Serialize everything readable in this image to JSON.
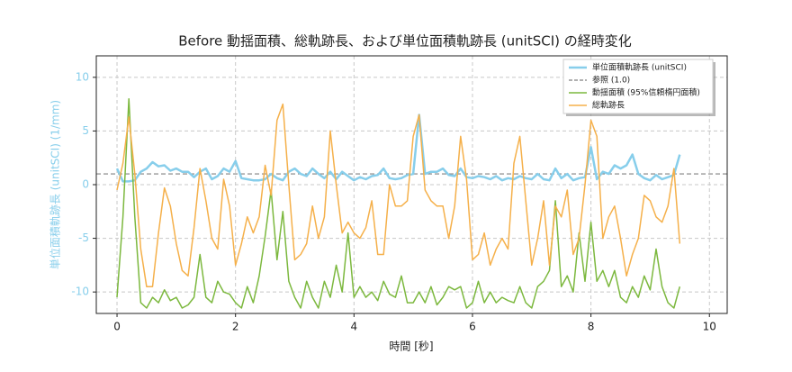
{
  "chart_data": {
    "type": "line",
    "title": "Before 動揺面積、総軌跡長、および単位面積軌跡長 (unitSCI) の経時変化",
    "xlabel": "時間 [秒]",
    "ylabel": "単位面積軌跡長 (unitSCI) (1/mm)",
    "ylabel_color": "#87ceeb",
    "xlim": [
      -0.35,
      10.3
    ],
    "ylim": [
      -12,
      12
    ],
    "xticks": [
      0,
      2,
      4,
      6,
      8,
      10
    ],
    "yticks": [
      -10,
      -5,
      0,
      5,
      10
    ],
    "grid": true,
    "legend": "upper right",
    "x": [
      0,
      0.1,
      0.2,
      0.3,
      0.4,
      0.5,
      0.6,
      0.7,
      0.8,
      0.9,
      1.0,
      1.1,
      1.2,
      1.3,
      1.4,
      1.5,
      1.6,
      1.7,
      1.8,
      1.9,
      2.0,
      2.1,
      2.2,
      2.3,
      2.4,
      2.5,
      2.6,
      2.7,
      2.8,
      2.9,
      3.0,
      3.1,
      3.2,
      3.3,
      3.4,
      3.5,
      3.6,
      3.7,
      3.8,
      3.9,
      4.0,
      4.1,
      4.2,
      4.3,
      4.4,
      4.5,
      4.6,
      4.7,
      4.8,
      4.9,
      5.0,
      5.1,
      5.2,
      5.3,
      5.4,
      5.5,
      5.6,
      5.7,
      5.8,
      5.9,
      6.0,
      6.1,
      6.2,
      6.3,
      6.4,
      6.5,
      6.6,
      6.7,
      6.8,
      6.9,
      7.0,
      7.1,
      7.2,
      7.3,
      7.4,
      7.5,
      7.6,
      7.7,
      7.8,
      7.9,
      8.0,
      8.1,
      8.2,
      8.3,
      8.4,
      8.5,
      8.6,
      8.7,
      8.8,
      8.9,
      9.0,
      9.1,
      9.2,
      9.3,
      9.4,
      9.5
    ],
    "series": [
      {
        "name": "単位面積軌跡長 (unitSCI)",
        "color": "#87ceeb",
        "width": 2.5,
        "values": [
          1.5,
          0.3,
          0.3,
          0.4,
          1.2,
          1.5,
          2.1,
          1.7,
          1.8,
          1.3,
          1.5,
          1.2,
          1.2,
          0.7,
          1.2,
          1.5,
          0.5,
          0.8,
          1.5,
          1.2,
          2.2,
          0.6,
          0.5,
          0.4,
          0.4,
          0.5,
          1.0,
          0.6,
          0.4,
          1.2,
          1.5,
          1.0,
          0.8,
          1.5,
          1.0,
          0.6,
          1.2,
          0.5,
          1.2,
          0.8,
          0.4,
          0.7,
          0.5,
          0.8,
          0.9,
          1.5,
          0.6,
          0.5,
          0.6,
          0.9,
          1.0,
          6.5,
          1.0,
          1.2,
          1.2,
          1.5,
          0.9,
          0.8,
          1.5,
          0.7,
          0.6,
          0.8,
          0.7,
          0.5,
          0.8,
          0.4,
          0.6,
          0.5,
          0.8,
          0.6,
          0.5,
          1.0,
          0.5,
          0.4,
          1.5,
          0.6,
          1.0,
          0.4,
          0.6,
          0.7,
          3.5,
          0.5,
          1.2,
          1.0,
          1.8,
          1.5,
          1.8,
          2.8,
          1.0,
          0.6,
          0.4,
          0.9,
          0.5,
          0.7,
          0.9,
          2.8
        ]
      },
      {
        "name": "動揺面積 (95%信頼楕円面積)",
        "color": "#7cb83e",
        "width": 1.5,
        "values": [
          -10.5,
          -3,
          8,
          -3,
          -11,
          -11.5,
          -10.5,
          -11,
          -9.8,
          -10.8,
          -10.5,
          -11.5,
          -11.2,
          -10.5,
          -6.5,
          -10.5,
          -11,
          -9,
          -10,
          -10.2,
          -11,
          -11.5,
          -9.5,
          -11,
          -8.5,
          -4.8,
          -0.5,
          -7,
          -2.5,
          -9,
          -10.5,
          -11.5,
          -9,
          -10.5,
          -11.5,
          -9,
          -10.5,
          -7.5,
          -10,
          -4.5,
          -10.5,
          -9.5,
          -10.5,
          -10,
          -10.8,
          -9,
          -10.2,
          -10.5,
          -8.5,
          -11,
          -11,
          -10,
          -11,
          -9.5,
          -11.2,
          -10.5,
          -9.5,
          -9.8,
          -9.5,
          -11.5,
          -11,
          -9,
          -11,
          -10,
          -11,
          -10.5,
          -10.8,
          -11,
          -9.5,
          -11,
          -11.5,
          -9.5,
          -9,
          -8,
          -1.5,
          -9.5,
          -8.5,
          -10,
          -4.5,
          -9,
          -3.5,
          -9,
          -8,
          -9.5,
          -8,
          -10.5,
          -11,
          -9.5,
          -10.5,
          -8.5,
          -9.8,
          -6,
          -9.5,
          -11,
          -11.5,
          -9.5
        ]
      },
      {
        "name": "総軌跡長",
        "color": "#f5b04a",
        "width": 1.5,
        "values": [
          -0.5,
          2,
          6.3,
          1,
          -6,
          -9.5,
          -9.5,
          -4.5,
          -0.3,
          -2,
          -5.5,
          -8,
          -8.5,
          -4,
          1.5,
          -1.5,
          -5,
          -6,
          0.5,
          -2,
          -7.5,
          -5.5,
          -3,
          -4.5,
          -3,
          1.8,
          -1,
          6,
          7.5,
          0,
          -7,
          -6.5,
          -5.5,
          -2,
          -5,
          -3,
          5,
          0,
          -4.5,
          -3.5,
          -4.5,
          -5,
          -4,
          -1.5,
          -6.5,
          -6.5,
          0,
          -2,
          -2,
          -1.5,
          4.5,
          6.5,
          -0.5,
          -1.5,
          -2,
          -2,
          -5,
          -2,
          4.5,
          0.5,
          -7,
          -6.5,
          -4.5,
          -7.5,
          -6,
          -5,
          -6,
          2,
          4.5,
          -1.5,
          -7.5,
          -5,
          -1.5,
          -7.5,
          -2,
          -3,
          -0.5,
          -6.5,
          -5,
          0,
          6,
          4.5,
          -5,
          -3,
          -2,
          -5,
          -8.5,
          -6.5,
          -5,
          -1,
          -1.5,
          -3,
          -3.5,
          -2,
          1.5,
          -5.5
        ]
      }
    ],
    "reference": {
      "name": "参照 (1.0)",
      "value": 1.0,
      "color": "#808080"
    }
  }
}
